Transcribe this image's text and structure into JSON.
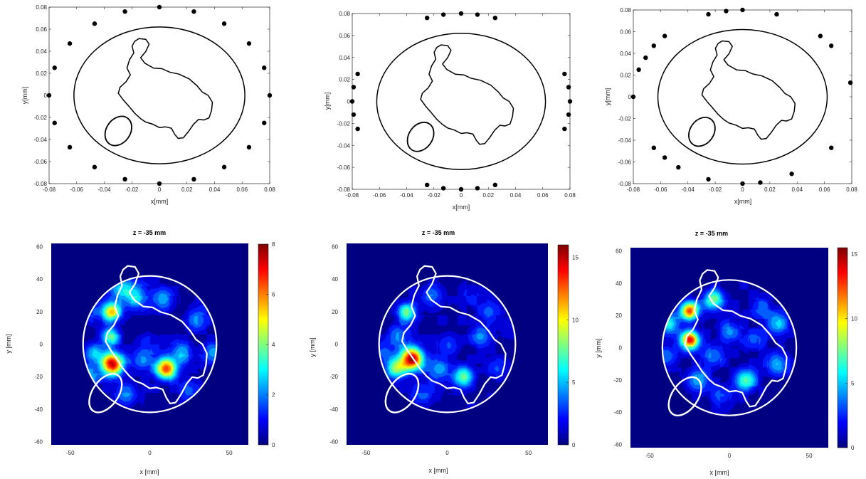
{
  "chart_data": [
    {
      "type": "scatter",
      "xlabel": "x[mm]",
      "ylabel": "y[mm]",
      "xlim": [
        -0.08,
        0.08
      ],
      "ylim": [
        -0.08,
        0.08
      ],
      "xticks": [
        "-0.08",
        "-0.06",
        "-0.04",
        "-0.02",
        "0",
        "0.02",
        "0.04",
        "0.06",
        "0.08"
      ],
      "yticks": [
        "0.08",
        "0.06",
        "0.04",
        "0.02",
        "0",
        "-0.02",
        "-0.04",
        "-0.06",
        "-0.08"
      ],
      "points": [
        [
          0.08,
          0
        ],
        [
          0.076,
          0.025
        ],
        [
          0.065,
          0.047
        ],
        [
          0.047,
          0.065
        ],
        [
          0.025,
          0.076
        ],
        [
          0,
          0.08
        ],
        [
          -0.025,
          0.076
        ],
        [
          -0.047,
          0.065
        ],
        [
          -0.065,
          0.047
        ],
        [
          -0.076,
          0.025
        ],
        [
          -0.08,
          0
        ],
        [
          -0.076,
          -0.025
        ],
        [
          -0.065,
          -0.047
        ],
        [
          -0.047,
          -0.065
        ],
        [
          -0.025,
          -0.076
        ],
        [
          0,
          -0.08
        ],
        [
          0.025,
          -0.076
        ],
        [
          0.047,
          -0.065
        ],
        [
          0.065,
          -0.047
        ],
        [
          0.076,
          -0.025
        ]
      ]
    },
    {
      "type": "scatter",
      "xlabel": "x[mm]",
      "ylabel": "y[mm]",
      "xlim": [
        -0.08,
        0.08
      ],
      "ylim": [
        -0.08,
        0.08
      ],
      "xticks": [
        "-0.08",
        "-0.06",
        "-0.04",
        "-0.02",
        "0",
        "0.02",
        "0.04",
        "0.06",
        "0.08"
      ],
      "yticks": [
        "0.08",
        "0.06",
        "0.04",
        "0.02",
        "0",
        "-0.02",
        "-0.04",
        "-0.06",
        "-0.08"
      ],
      "points": [
        [
          -0.025,
          0.076
        ],
        [
          -0.013,
          0.079
        ],
        [
          0,
          0.08
        ],
        [
          0.012,
          0.079
        ],
        [
          0.025,
          0.076
        ],
        [
          -0.076,
          0.025
        ],
        [
          -0.079,
          0.013
        ],
        [
          -0.08,
          0
        ],
        [
          -0.079,
          -0.012
        ],
        [
          -0.076,
          -0.025
        ],
        [
          0.076,
          0.025
        ],
        [
          0.079,
          0.013
        ],
        [
          0.08,
          0
        ],
        [
          0.079,
          -0.012
        ],
        [
          0.076,
          -0.025
        ],
        [
          -0.025,
          -0.076
        ],
        [
          -0.013,
          -0.079
        ],
        [
          0,
          -0.08
        ],
        [
          0.012,
          -0.079
        ],
        [
          0.025,
          -0.076
        ]
      ]
    },
    {
      "type": "scatter",
      "xlabel": "x[mm]",
      "ylabel": "y[mm]",
      "xlim": [
        -0.08,
        0.08
      ],
      "ylim": [
        -0.08,
        0.08
      ],
      "xticks": [
        "-0.08",
        "-0.06",
        "-0.04",
        "-0.02",
        "0",
        "0.02",
        "0.04",
        "0.06",
        "0.08"
      ],
      "yticks": [
        "0.08",
        "0.06",
        "0.04",
        "0.02",
        "0",
        "-0.02",
        "-0.04",
        "-0.06",
        "-0.08"
      ],
      "points": [
        [
          -0.025,
          0.076
        ],
        [
          -0.012,
          0.079
        ],
        [
          0,
          0.08
        ],
        [
          0.025,
          0.076
        ],
        [
          -0.057,
          0.056
        ],
        [
          -0.065,
          0.047
        ],
        [
          -0.071,
          0.036
        ],
        [
          -0.076,
          0.025
        ],
        [
          -0.08,
          0
        ],
        [
          0.057,
          0.056
        ],
        [
          0.065,
          0.047
        ],
        [
          0.079,
          0.013
        ],
        [
          -0.065,
          -0.047
        ],
        [
          -0.057,
          -0.056
        ],
        [
          -0.047,
          -0.065
        ],
        [
          -0.025,
          -0.076
        ],
        [
          0,
          -0.08
        ],
        [
          0.013,
          -0.079
        ],
        [
          0.036,
          -0.071
        ],
        [
          0.065,
          -0.047
        ]
      ]
    },
    {
      "type": "heatmap",
      "title": "z = -35 mm",
      "xlabel": "x [mm]",
      "ylabel": "y [mm]",
      "xlim": [
        -62,
        62
      ],
      "ylim": [
        -62,
        62
      ],
      "xticks": [
        "-50",
        "0",
        "50"
      ],
      "yticks": [
        "60",
        "40",
        "20",
        "0",
        "-20",
        "-40",
        "-60"
      ],
      "colorbar": {
        "range": [
          0,
          8
        ],
        "ticks": [
          "8",
          "6",
          "4",
          "2",
          "0"
        ]
      },
      "hotspots": [
        [
          -24,
          -12,
          8,
          5
        ],
        [
          10,
          -15,
          7.2,
          4.5
        ],
        [
          -24,
          20,
          5.5,
          4
        ],
        [
          -25,
          5,
          4,
          4
        ],
        [
          -40,
          -20,
          3,
          5
        ],
        [
          -36,
          -5,
          2.5,
          4
        ],
        [
          -10,
          30,
          3,
          6
        ],
        [
          -20,
          35,
          2,
          5
        ],
        [
          8,
          28,
          2.3,
          5
        ],
        [
          20,
          -5,
          2.4,
          5
        ],
        [
          30,
          15,
          2,
          5
        ],
        [
          40,
          -5,
          2,
          5
        ],
        [
          38,
          30,
          2.5,
          4
        ],
        [
          -5,
          -10,
          2,
          5
        ],
        [
          25,
          -28,
          1.5,
          5
        ],
        [
          -15,
          -30,
          2,
          5
        ],
        [
          -35,
          20,
          1.5,
          5
        ],
        [
          0,
          0,
          0.8,
          6
        ]
      ]
    },
    {
      "type": "heatmap",
      "title": "z = -35 mm",
      "xlabel": "x [mm]",
      "ylabel": "y [mm]",
      "xlim": [
        -62,
        62
      ],
      "ylim": [
        -62,
        62
      ],
      "xticks": [
        "-50",
        "0",
        "50"
      ],
      "yticks": [
        "60",
        "40",
        "20",
        "0",
        "-20",
        "-40",
        "-60"
      ],
      "colorbar": {
        "range": [
          0,
          16
        ],
        "ticks": [
          "15",
          "10",
          "5",
          "0"
        ]
      },
      "hotspots": [
        [
          -22,
          -9,
          16,
          5
        ],
        [
          -32,
          -15,
          8,
          4.5
        ],
        [
          -25,
          20,
          8,
          4
        ],
        [
          10,
          -20,
          8,
          4.5
        ],
        [
          -10,
          30,
          4,
          5
        ],
        [
          -30,
          5,
          4,
          5
        ],
        [
          0,
          0,
          3,
          5
        ],
        [
          20,
          5,
          4,
          5
        ],
        [
          30,
          -15,
          3,
          5
        ],
        [
          -15,
          -30,
          3,
          6
        ],
        [
          25,
          20,
          3,
          5
        ],
        [
          -40,
          -5,
          3,
          5
        ],
        [
          40,
          10,
          2,
          5
        ],
        [
          -5,
          -15,
          4,
          5
        ],
        [
          15,
          30,
          2,
          5
        ]
      ]
    },
    {
      "type": "heatmap",
      "title": "z = -35 mm",
      "xlabel": "x [mm]",
      "ylabel": "y [mm]",
      "xlim": [
        -62,
        62
      ],
      "ylim": [
        -62,
        62
      ],
      "xticks": [
        "-50",
        "0",
        "50"
      ],
      "yticks": [
        "60",
        "40",
        "20",
        "0",
        "-20",
        "-40",
        "-60"
      ],
      "colorbar": {
        "range": [
          0,
          15.5
        ],
        "ticks": [
          "15",
          "10",
          "5",
          "0"
        ]
      },
      "hotspots": [
        [
          -25,
          5,
          15,
          4
        ],
        [
          -25,
          23,
          13,
          4
        ],
        [
          -10,
          30,
          8,
          4.5
        ],
        [
          -38,
          15,
          6,
          4.5
        ],
        [
          10,
          -20,
          7,
          5
        ],
        [
          30,
          -10,
          5,
          5
        ],
        [
          -20,
          -20,
          5,
          5
        ],
        [
          30,
          15,
          5,
          5
        ],
        [
          -40,
          -5,
          4,
          5
        ],
        [
          0,
          10,
          4,
          5
        ],
        [
          15,
          5,
          3,
          5
        ],
        [
          -10,
          -5,
          4,
          5
        ],
        [
          40,
          30,
          3,
          5
        ],
        [
          20,
          25,
          3,
          5
        ],
        [
          -5,
          -30,
          3,
          5
        ]
      ]
    }
  ]
}
